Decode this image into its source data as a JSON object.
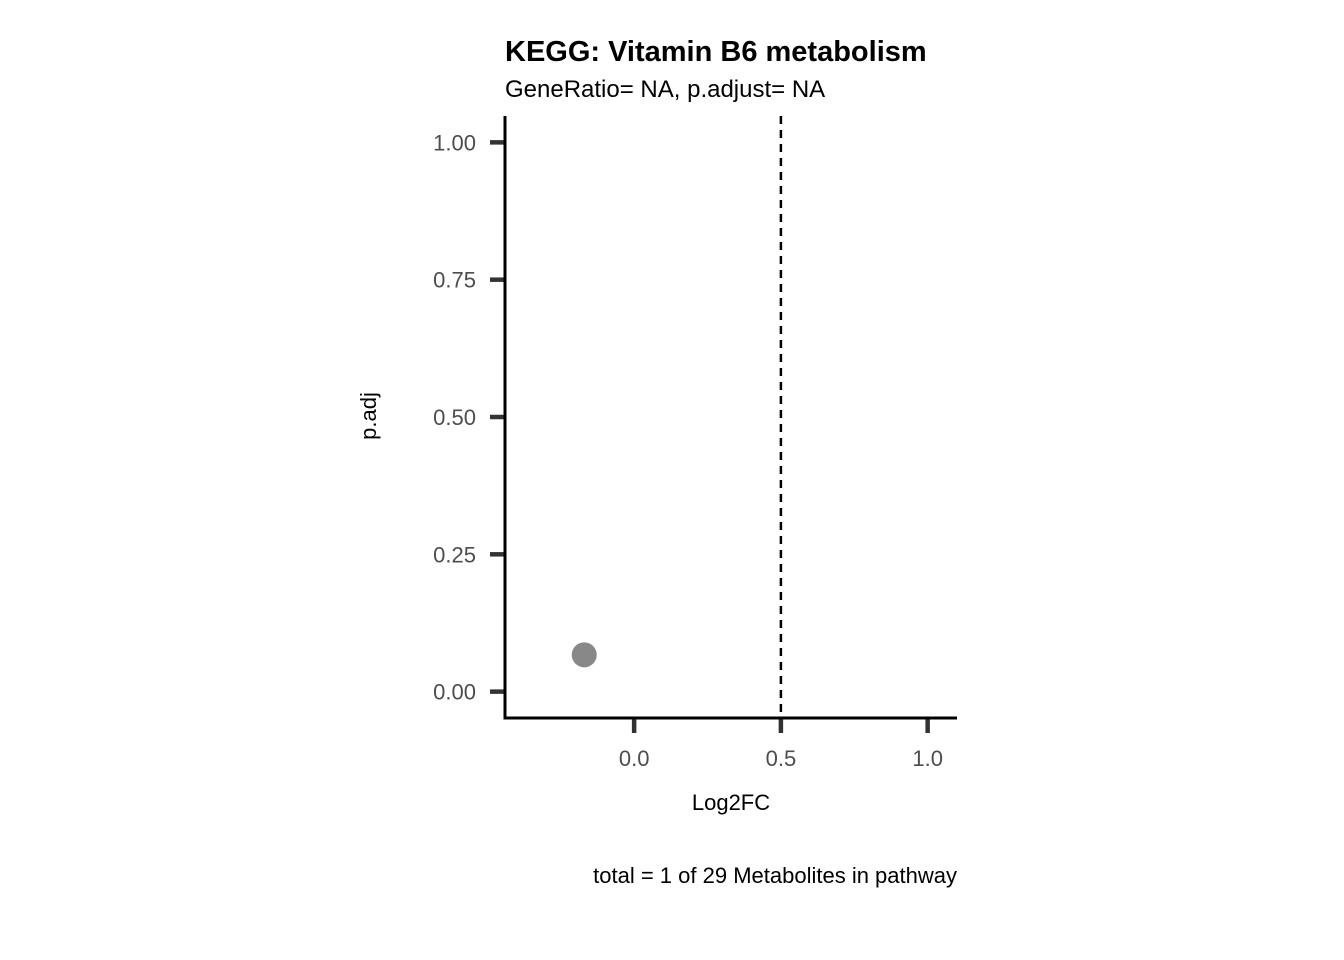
{
  "chart_data": {
    "type": "scatter",
    "title": "KEGG: Vitamin B6 metabolism",
    "subtitle": "GeneRatio= NA, p.adjust= NA",
    "xlabel": "Log2FC",
    "ylabel": "p.adj",
    "caption": "total = 1 of 29 Metabolites in pathway",
    "xlim": [
      -0.44,
      1.1
    ],
    "ylim": [
      -0.048,
      1.048
    ],
    "x_ticks": [
      0.0,
      0.5,
      1.0
    ],
    "x_tick_labels": [
      "0.0",
      "0.5",
      "1.0"
    ],
    "y_ticks": [
      0.0,
      0.25,
      0.5,
      0.75,
      1.0
    ],
    "y_tick_labels": [
      "0.00",
      "0.25",
      "0.50",
      "0.75",
      "1.00"
    ],
    "vline": 0.5,
    "grid": false,
    "points": [
      {
        "x": -0.17,
        "y": 0.067
      }
    ],
    "colors": {
      "point": "#888888",
      "axis": "#000000",
      "tick": "#333333",
      "vline": "#000000"
    }
  }
}
